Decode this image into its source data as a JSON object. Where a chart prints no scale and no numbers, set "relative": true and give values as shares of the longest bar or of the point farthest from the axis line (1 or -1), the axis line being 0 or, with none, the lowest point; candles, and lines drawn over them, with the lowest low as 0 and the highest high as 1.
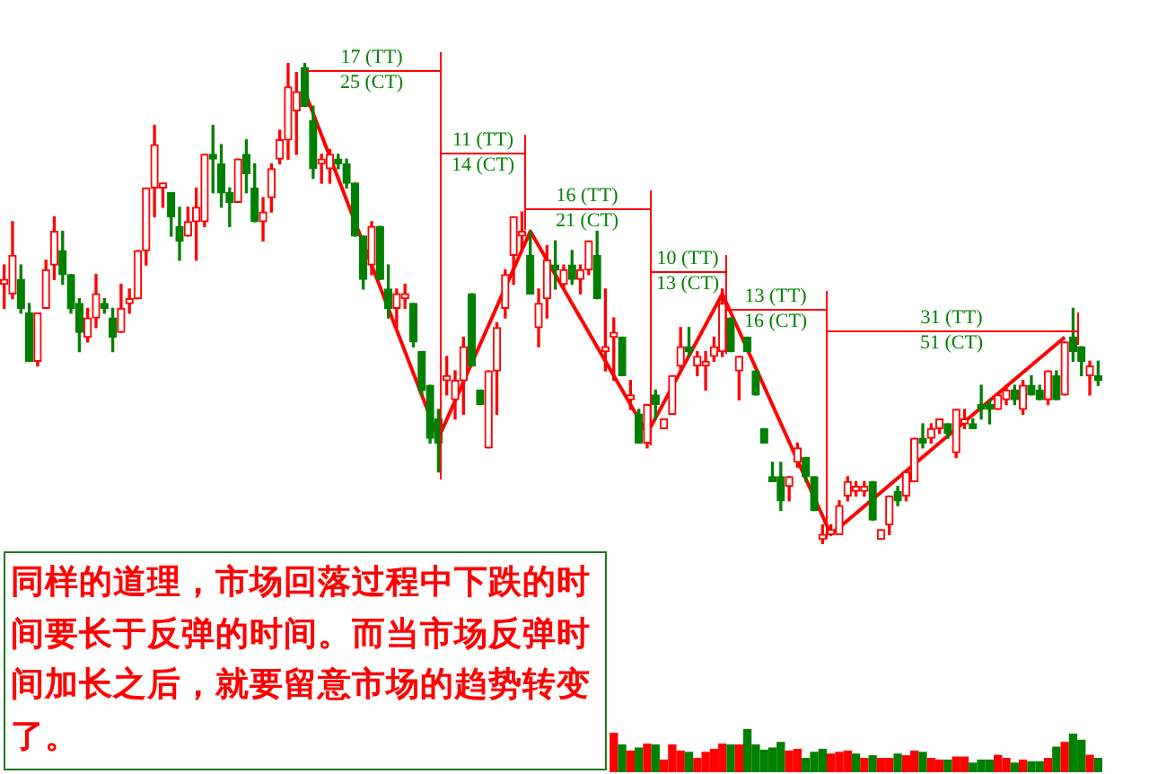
{
  "chart_data": [
    {
      "type": "candlestick",
      "relative": true,
      "categories": [
        null,
        null,
        null,
        null,
        null,
        null,
        null,
        null,
        null,
        null,
        null,
        null,
        null,
        null,
        null,
        null,
        null,
        null,
        null,
        null,
        null,
        null,
        null,
        null,
        null,
        null,
        null,
        null,
        null,
        null,
        null,
        null,
        null,
        null,
        null,
        null,
        null,
        null,
        null,
        null,
        null,
        null,
        null,
        null,
        null,
        null,
        null,
        null,
        null,
        null,
        null,
        null,
        null,
        null,
        null,
        null,
        null,
        null,
        null,
        null,
        null,
        null,
        null,
        null,
        null,
        null,
        null,
        null,
        null,
        null,
        null,
        null,
        null,
        null,
        null,
        null,
        null,
        null,
        null,
        null,
        null,
        null,
        null,
        null,
        null,
        null,
        null,
        null,
        null,
        null,
        null,
        null,
        null,
        null,
        null,
        null,
        null,
        null,
        null,
        null,
        null,
        null,
        null,
        null,
        null,
        null,
        null,
        null,
        null,
        null,
        null,
        null,
        null,
        null,
        null,
        null,
        null,
        null,
        null,
        null,
        null,
        null,
        null,
        null,
        null,
        null,
        null,
        null,
        null,
        null,
        null,
        null
      ],
      "ohlc": [
        [
          0.54,
          0.58,
          0.49,
          0.55
        ],
        [
          0.52,
          0.67,
          0.51,
          0.6
        ],
        [
          0.55,
          0.58,
          0.48,
          0.49
        ],
        [
          0.48,
          0.5,
          0.38,
          0.38
        ],
        [
          0.38,
          0.48,
          0.37,
          0.48
        ],
        [
          0.49,
          0.59,
          0.49,
          0.57
        ],
        [
          0.58,
          0.68,
          0.55,
          0.65
        ],
        [
          0.61,
          0.65,
          0.54,
          0.56
        ],
        [
          0.56,
          0.56,
          0.48,
          0.49
        ],
        [
          0.5,
          0.51,
          0.4,
          0.44
        ],
        [
          0.43,
          0.49,
          0.42,
          0.47
        ],
        [
          0.47,
          0.56,
          0.45,
          0.52
        ],
        [
          0.5,
          0.51,
          0.48,
          0.49
        ],
        [
          0.47,
          0.49,
          0.4,
          0.43
        ],
        [
          0.44,
          0.54,
          0.44,
          0.49
        ],
        [
          0.5,
          0.53,
          0.48,
          0.51
        ],
        [
          0.51,
          0.61,
          0.51,
          0.61
        ],
        [
          0.61,
          0.74,
          0.58,
          0.74
        ],
        [
          0.74,
          0.87,
          0.68,
          0.83
        ],
        [
          0.74,
          0.75,
          0.7,
          0.75
        ],
        [
          0.73,
          0.73,
          0.64,
          0.68
        ],
        [
          0.66,
          0.7,
          0.59,
          0.63
        ],
        [
          0.64,
          0.7,
          0.64,
          0.67
        ],
        [
          0.67,
          0.74,
          0.59,
          0.7
        ],
        [
          0.67,
          0.81,
          0.66,
          0.81
        ],
        [
          0.81,
          0.87,
          0.73,
          0.8
        ],
        [
          0.79,
          0.83,
          0.7,
          0.73
        ],
        [
          0.73,
          0.74,
          0.66,
          0.71
        ],
        [
          0.71,
          0.8,
          0.71,
          0.8
        ],
        [
          0.81,
          0.84,
          0.73,
          0.77
        ],
        [
          0.74,
          0.79,
          0.67,
          0.67
        ],
        [
          0.67,
          0.72,
          0.63,
          0.69
        ],
        [
          0.72,
          0.79,
          0.69,
          0.78
        ],
        [
          0.8,
          0.86,
          0.79,
          0.84
        ],
        [
          0.84,
          1,
          0.8,
          0.95
        ],
        [
          0.9,
          0.98,
          0.81,
          0.94
        ],
        [
          0.99,
          1,
          0.91,
          0.91
        ],
        [
          0.88,
          0.91,
          0.76,
          0.78
        ],
        [
          0.79,
          0.81,
          0.75,
          0.8
        ],
        [
          0.78,
          0.82,
          0.75,
          0.81
        ],
        [
          0.8,
          0.81,
          0.78,
          0.79
        ],
        [
          0.79,
          0.8,
          0.74,
          0.75
        ],
        [
          0.75,
          0.75,
          0.64,
          0.64
        ],
        [
          0.64,
          0.64,
          0.53,
          0.55
        ],
        [
          0.58,
          0.67,
          0.56,
          0.66
        ],
        [
          0.66,
          0.66,
          0.55,
          0.55
        ],
        [
          0.53,
          0.58,
          0.47,
          0.49
        ],
        [
          0.49,
          0.53,
          0.45,
          0.52
        ],
        [
          0.51,
          0.54,
          0.49,
          0.52
        ],
        [
          0.5,
          0.5,
          0.41,
          0.42
        ],
        [
          0.4,
          0.4,
          0.31,
          0.32
        ],
        [
          0.33,
          0.33,
          0.21,
          0.22
        ],
        [
          0.26,
          0.28,
          0.15,
          0.21
        ],
        [
          0.34,
          0.39,
          0.31,
          0.35
        ],
        [
          0.3,
          0.36,
          0.26,
          0.34
        ],
        [
          0.34,
          0.43,
          0.27,
          0.41
        ],
        [
          0.52,
          0.52,
          0.37,
          0.37
        ],
        [
          0.32,
          0.32,
          0.29,
          0.29
        ],
        [
          0.2,
          0.36,
          0.2,
          0.36
        ],
        [
          0.36,
          0.46,
          0.27,
          0.45
        ],
        [
          0.49,
          0.57,
          0.47,
          0.56
        ],
        [
          0.6,
          0.68,
          0.54,
          0.68
        ],
        [
          0.64,
          0.69,
          0.61,
          0.65
        ],
        [
          0.6,
          0.65,
          0.52,
          0.52
        ],
        [
          0.45,
          0.53,
          0.41,
          0.5
        ],
        [
          0.51,
          0.62,
          0.47,
          0.59
        ],
        [
          0.58,
          0.63,
          0.53,
          0.57
        ],
        [
          0.54,
          0.58,
          0.53,
          0.57
        ],
        [
          0.58,
          0.61,
          0.54,
          0.55
        ],
        [
          0.55,
          0.58,
          0.52,
          0.57
        ],
        [
          0.57,
          0.63,
          0.56,
          0.63
        ],
        [
          0.6,
          0.65,
          0.51,
          0.51
        ],
        [
          0.4,
          0.53,
          0.36,
          0.41
        ],
        [
          0.43,
          0.47,
          0.34,
          0.44
        ],
        [
          0.43,
          0.43,
          0.35,
          0.35
        ],
        [
          0.3,
          0.34,
          0.28,
          0.31
        ],
        [
          0.27,
          0.28,
          0.21,
          0.21
        ],
        [
          0.21,
          0.29,
          0.2,
          0.29
        ],
        [
          0.31,
          0.32,
          0.26,
          0.29
        ],
        [
          0.24,
          0.26,
          0.24,
          0.26
        ],
        [
          0.27,
          0.35,
          0.27,
          0.35
        ],
        [
          0.37,
          0.45,
          0.36,
          0.41
        ],
        [
          0.41,
          0.45,
          0.39,
          0.4
        ],
        [
          0.37,
          0.4,
          0.35,
          0.39
        ],
        [
          0.37,
          0.4,
          0.32,
          0.38
        ],
        [
          0.39,
          0.43,
          0.38,
          0.41
        ],
        [
          0.4,
          0.53,
          0.39,
          0.5
        ],
        [
          0.47,
          0.47,
          0.4,
          0.4
        ],
        [
          0.36,
          0.39,
          0.3,
          0.39
        ],
        [
          0.43,
          0.43,
          0.4,
          0.4
        ],
        [
          0.36,
          0.36,
          0.31,
          0.31
        ],
        [
          0.24,
          0.24,
          0.21,
          0.21
        ],
        [
          0.14,
          0.17,
          0.13,
          0.13
        ],
        [
          0.14,
          0.17,
          0.07,
          0.09
        ],
        [
          0.12,
          0.14,
          0.09,
          0.14
        ],
        [
          0.17,
          0.21,
          0.16,
          0.2
        ],
        [
          0.18,
          0.18,
          0.13,
          0.14
        ],
        [
          0.14,
          0.14,
          0.07,
          0.07
        ],
        [
          0.01,
          0.04,
          0,
          0.02
        ],
        [
          0.02,
          0.04,
          0.02,
          0.03
        ],
        [
          0.02,
          0.09,
          0.02,
          0.08
        ],
        [
          0.1,
          0.14,
          0.09,
          0.13
        ],
        [
          0.11,
          0.13,
          0.1,
          0.12
        ],
        [
          0.11,
          0.13,
          0.1,
          0.12
        ],
        [
          0.13,
          0.13,
          0.05,
          0.05
        ],
        [
          0.01,
          0.03,
          0.01,
          0.03
        ],
        [
          0.04,
          0.1,
          0.02,
          0.1
        ],
        [
          0.11,
          0.12,
          0.08,
          0.09
        ],
        [
          0.1,
          0.15,
          0.09,
          0.15
        ],
        [
          0.13,
          0.22,
          0.13,
          0.22
        ],
        [
          0.22,
          0.25,
          0.2,
          0.21
        ],
        [
          0.22,
          0.25,
          0.21,
          0.24
        ],
        [
          0.24,
          0.26,
          0.23,
          0.26
        ],
        [
          0.25,
          0.25,
          0.22,
          0.23
        ],
        [
          0.19,
          0.28,
          0.18,
          0.28
        ],
        [
          0.25,
          0.28,
          0.24,
          0.26
        ],
        [
          0.25,
          0.26,
          0.24,
          0.24
        ],
        [
          0.29,
          0.33,
          0.26,
          0.28
        ],
        [
          0.29,
          0.3,
          0.25,
          0.28
        ],
        [
          0.28,
          0.31,
          0.28,
          0.31
        ],
        [
          0.3,
          0.33,
          0.29,
          0.32
        ],
        [
          0.32,
          0.33,
          0.29,
          0.3
        ],
        [
          0.28,
          0.34,
          0.27,
          0.33
        ],
        [
          0.33,
          0.35,
          0.31,
          0.31
        ],
        [
          0.32,
          0.33,
          0.3,
          0.3
        ],
        [
          0.3,
          0.36,
          0.29,
          0.36
        ],
        [
          0.35,
          0.36,
          0.3,
          0.3
        ],
        [
          0.31,
          0.42,
          0.31,
          0.42
        ],
        [
          0.43,
          0.49,
          0.38,
          0.4
        ],
        [
          0.41,
          0.41,
          0.35,
          0.38
        ],
        [
          0.35,
          0.38,
          0.31,
          0.37
        ],
        [
          0.35,
          0.38,
          0.33,
          0.34
        ]
      ],
      "colors": [
        "#ff0000",
        "#ff0000",
        "#008000",
        "#008000",
        "#ff0000",
        "#ff0000",
        "#ff0000",
        "#008000",
        "#008000",
        "#008000",
        "#ff0000",
        "#ff0000",
        "#008000",
        "#008000",
        "#ff0000",
        "#ff0000",
        "#ff0000",
        "#ff0000",
        "#ff0000",
        "#ff0000",
        "#008000",
        "#008000",
        "#ff0000",
        "#ff0000",
        "#ff0000",
        "#008000",
        "#008000",
        "#008000",
        "#ff0000",
        "#008000",
        "#008000",
        "#ff0000",
        "#ff0000",
        "#ff0000",
        "#ff0000",
        "#ff0000",
        "#008000",
        "#008000",
        "#ff0000",
        "#ff0000",
        "#008000",
        "#008000",
        "#008000",
        "#008000",
        "#ff0000",
        "#008000",
        "#008000",
        "#ff0000",
        "#ff0000",
        "#008000",
        "#008000",
        "#008000",
        "#008000",
        "#ff0000",
        "#ff0000",
        "#ff0000",
        "#008000",
        "#008000",
        "#ff0000",
        "#ff0000",
        "#ff0000",
        "#ff0000",
        "#ff0000",
        "#008000",
        "#ff0000",
        "#ff0000",
        "#008000",
        "#ff0000",
        "#008000",
        "#ff0000",
        "#ff0000",
        "#008000",
        "#ff0000",
        "#ff0000",
        "#008000",
        "#ff0000",
        "#008000",
        "#ff0000",
        "#008000",
        "#ff0000",
        "#ff0000",
        "#ff0000",
        "#008000",
        "#ff0000",
        "#ff0000",
        "#ff0000",
        "#ff0000",
        "#008000",
        "#ff0000",
        "#008000",
        "#008000",
        "#008000",
        "#008000",
        "#008000",
        "#ff0000",
        "#ff0000",
        "#008000",
        "#008000",
        "#ff0000",
        "#ff0000",
        "#ff0000",
        "#ff0000",
        "#ff0000",
        "#ff0000",
        "#008000",
        "#ff0000",
        "#ff0000",
        "#008000",
        "#ff0000",
        "#ff0000",
        "#008000",
        "#ff0000",
        "#ff0000",
        "#008000",
        "#ff0000",
        "#ff0000",
        "#008000",
        "#008000",
        "#008000",
        "#ff0000",
        "#ff0000",
        "#008000",
        "#ff0000",
        "#008000",
        "#008000",
        "#ff0000",
        "#008000",
        "#ff0000",
        "#008000",
        "#008000",
        "#ff0000",
        "#008000"
      ],
      "series": [
        {
          "type": "line",
          "color": "#ff0000",
          "values": [
            null,
            null,
            null,
            null,
            null,
            null,
            null,
            null,
            null,
            null,
            null,
            null,
            null,
            null,
            null,
            null,
            null,
            null,
            null,
            null,
            null,
            null,
            null,
            null,
            null,
            null,
            null,
            null,
            null,
            null,
            null,
            null,
            null,
            null,
            null,
            null,
            0.94,
            null,
            null,
            null,
            null,
            null,
            null,
            null,
            null,
            null,
            null,
            null,
            null,
            null,
            null,
            null,
            0.22,
            null,
            null,
            null,
            null,
            null,
            null,
            null,
            null,
            null,
            null,
            0.65,
            null,
            null,
            null,
            null,
            null,
            null,
            null,
            null,
            null,
            null,
            null,
            null,
            null,
            0.23,
            null,
            null,
            null,
            null,
            null,
            null,
            null,
            null,
            0.52,
            null,
            null,
            null,
            null,
            null,
            null,
            null,
            null,
            null,
            null,
            null,
            null,
            0.02,
            null,
            null,
            null,
            null,
            null,
            null,
            null,
            null,
            null,
            null,
            null,
            null,
            null,
            null,
            null,
            null,
            null,
            null,
            null,
            null,
            null,
            null,
            null,
            null,
            null,
            null,
            null,
            0.43,
            null,
            null,
            null,
            null
          ]
        }
      ],
      "annotations": [
        "17 (TT)",
        "25 (CT)",
        "11 (TT)",
        "14 (CT)",
        "16 (TT)",
        "21 (CT)",
        "10 (TT)",
        "13 (CT)",
        "13 (TT)",
        "16 (CT)",
        "31 (TT)",
        "51 (CT)",
        "同样的道理，市场回落过程中下跌的时间要长于反弹的时间。而当市场反弹时间加长之后，就要留意市场的趋势转变了。"
      ]
    },
    {
      "type": "bar",
      "relative": true,
      "categories": [
        null,
        null,
        null,
        null,
        null,
        null,
        null,
        null,
        null,
        null,
        null,
        null,
        null,
        null,
        null,
        null,
        null,
        null,
        null,
        null,
        null,
        null,
        null,
        null,
        null,
        null,
        null,
        null,
        null,
        null,
        null,
        null,
        null,
        null,
        null,
        null,
        null,
        null,
        null,
        null,
        null,
        null,
        null,
        null,
        null,
        null,
        null,
        null,
        null,
        null,
        null,
        null,
        null,
        null,
        null,
        null,
        null,
        null,
        null,
        null,
        null,
        null,
        null,
        null,
        null,
        null,
        null,
        null,
        null,
        null,
        null,
        null,
        null,
        null,
        null,
        null,
        null,
        null,
        null,
        null,
        null,
        null,
        null,
        null,
        null,
        null,
        null,
        null,
        null,
        null,
        null,
        null,
        null,
        null,
        null,
        null,
        null,
        null,
        null,
        null,
        null,
        null,
        null,
        null,
        null,
        null,
        null,
        null,
        null,
        null,
        null,
        null,
        null,
        null,
        null,
        null,
        null,
        null,
        null,
        null,
        null,
        null,
        null,
        null,
        null,
        null,
        null,
        null,
        null,
        null,
        null,
        null
      ],
      "values": [
        null,
        null,
        null,
        null,
        null,
        null,
        null,
        null,
        null,
        null,
        null,
        null,
        null,
        null,
        null,
        null,
        null,
        null,
        null,
        null,
        null,
        null,
        null,
        null,
        null,
        null,
        null,
        null,
        null,
        null,
        null,
        null,
        null,
        null,
        null,
        null,
        null,
        null,
        null,
        null,
        null,
        null,
        null,
        null,
        null,
        null,
        null,
        null,
        null,
        null,
        null,
        null,
        null,
        null,
        null,
        null,
        null,
        null,
        null,
        null,
        null,
        null,
        null,
        null,
        null,
        null,
        null,
        null,
        null,
        null,
        null,
        null,
        null,
        0.9,
        0.63,
        0.49,
        0.56,
        0.65,
        0.63,
        0.28,
        0.63,
        0.49,
        0.46,
        0.32,
        0.46,
        0.53,
        0.65,
        0.63,
        0.63,
        1,
        0.63,
        0.51,
        0.56,
        0.69,
        0.49,
        0.53,
        0.32,
        0.46,
        0.53,
        0.42,
        0.46,
        0.49,
        0.42,
        0.32,
        0.38,
        0.32,
        0.32,
        0.42,
        0.38,
        0.49,
        0.46,
        0.32,
        0.28,
        0.28,
        0.35,
        0.35,
        0.21,
        0.28,
        0.28,
        0.39,
        0.32,
        0.21,
        0.28,
        0.24,
        0.24,
        0.32,
        0.58,
        0.69,
        0.88,
        0.74,
        0.39,
        0.32
      ],
      "colors": [
        null,
        null,
        null,
        null,
        null,
        null,
        null,
        null,
        null,
        null,
        null,
        null,
        null,
        null,
        null,
        null,
        null,
        null,
        null,
        null,
        null,
        null,
        null,
        null,
        null,
        null,
        null,
        null,
        null,
        null,
        null,
        null,
        null,
        null,
        null,
        null,
        null,
        null,
        null,
        null,
        null,
        null,
        null,
        null,
        null,
        null,
        null,
        null,
        null,
        null,
        null,
        null,
        null,
        null,
        null,
        null,
        null,
        null,
        null,
        null,
        null,
        null,
        null,
        null,
        null,
        null,
        null,
        null,
        null,
        null,
        null,
        null,
        "#ff0000",
        "#ff0000",
        "#008000",
        "#ff0000",
        "#008000",
        "#ff0000",
        "#008000",
        "#ff0000",
        "#ff0000",
        "#ff0000",
        "#008000",
        "#ff0000",
        "#ff0000",
        "#ff0000",
        "#ff0000",
        "#008000",
        "#ff0000",
        "#008000",
        "#008000",
        "#008000",
        "#008000",
        "#008000",
        "#ff0000",
        "#ff0000",
        "#008000",
        "#008000",
        "#008000",
        "#ff0000",
        "#ff0000",
        "#ff0000",
        "#008000",
        "#ff0000",
        "#008000",
        "#ff0000",
        "#ff0000",
        "#008000",
        "#ff0000",
        "#ff0000",
        "#008000",
        "#ff0000",
        "#ff0000",
        "#008000",
        "#ff0000",
        "#ff0000",
        "#008000",
        "#008000",
        "#008000",
        "#ff0000",
        "#ff0000",
        "#008000",
        "#ff0000",
        "#008000",
        "#008000",
        "#ff0000",
        "#008000",
        "#ff0000",
        "#008000",
        "#008000",
        "#ff0000",
        "#008000"
      ]
    }
  ]
}
